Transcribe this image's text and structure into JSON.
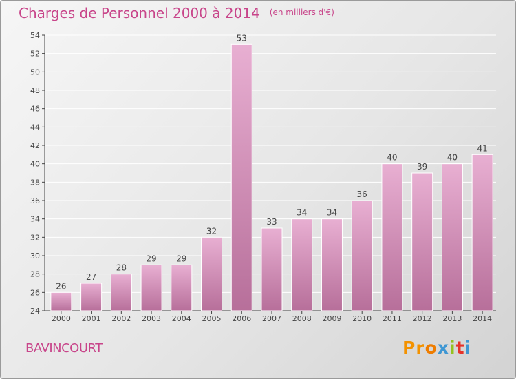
{
  "header": {
    "title": "Charges de Personnel 2000 à 2014",
    "unit": "(en milliers d'€)"
  },
  "commune": "BAVINCOURT",
  "logo": {
    "text": "Proxiti",
    "colors": [
      "#f39200",
      "#f39200",
      "#ef7d00",
      "#3f97d3",
      "#95c11f",
      "#e6332a",
      "#3f97d3"
    ]
  },
  "colors": {
    "text": "#c8458a",
    "bar_light": "#e8afd2",
    "bar_dark": "#b76f9a",
    "axis": "#444444"
  },
  "chart_data": {
    "type": "bar",
    "title": "Charges de Personnel 2000 à 2014",
    "categories": [
      "2000",
      "2001",
      "2002",
      "2003",
      "2004",
      "2005",
      "2006",
      "2007",
      "2008",
      "2009",
      "2010",
      "2011",
      "2012",
      "2013",
      "2014"
    ],
    "values": [
      26,
      27,
      28,
      29,
      29,
      32,
      53,
      33,
      34,
      34,
      36,
      40,
      39,
      40,
      41
    ],
    "ylim": [
      24,
      54
    ],
    "yticks": [
      "24",
      "26",
      "28",
      "30",
      "32",
      "34",
      "36",
      "38",
      "40",
      "42",
      "44",
      "46",
      "48",
      "50",
      "52",
      "54"
    ],
    "grid": true,
    "data_labels": true
  }
}
